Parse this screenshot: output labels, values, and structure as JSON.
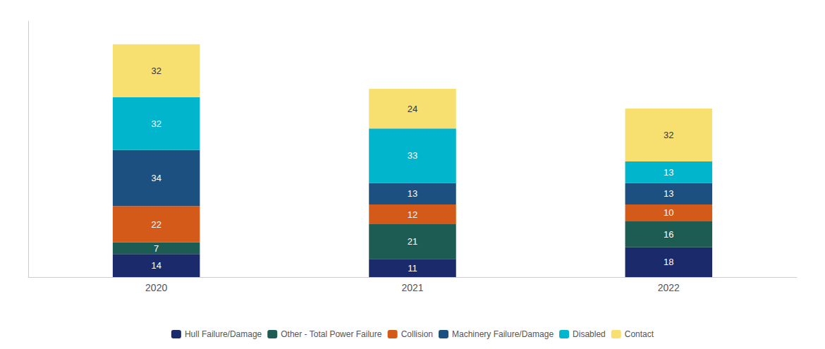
{
  "chart_data": {
    "type": "bar",
    "stacked": true,
    "data_labels": true,
    "grid": false,
    "legend": "bottom",
    "tick_labels": "x",
    "categories": [
      "2020",
      "2021",
      "2022"
    ],
    "ylim": [
      0,
      155
    ],
    "series": [
      {
        "name": "Hull Failure/Damage",
        "values": [
          14,
          11,
          18
        ],
        "color": "#1b2a6b"
      },
      {
        "name": "Other - Total Power Failure",
        "values": [
          7,
          21,
          16
        ],
        "color": "#1d5c52"
      },
      {
        "name": "Collision",
        "values": [
          22,
          12,
          10
        ],
        "color": "#d45a1a"
      },
      {
        "name": "Machinery Failure/Damage",
        "values": [
          34,
          13,
          13
        ],
        "color": "#1b5080"
      },
      {
        "name": "Disabled",
        "values": [
          32,
          33,
          13
        ],
        "color": "#00b5cc"
      },
      {
        "name": "Contact",
        "values": [
          32,
          24,
          32
        ],
        "color": "#f7e070"
      }
    ]
  }
}
